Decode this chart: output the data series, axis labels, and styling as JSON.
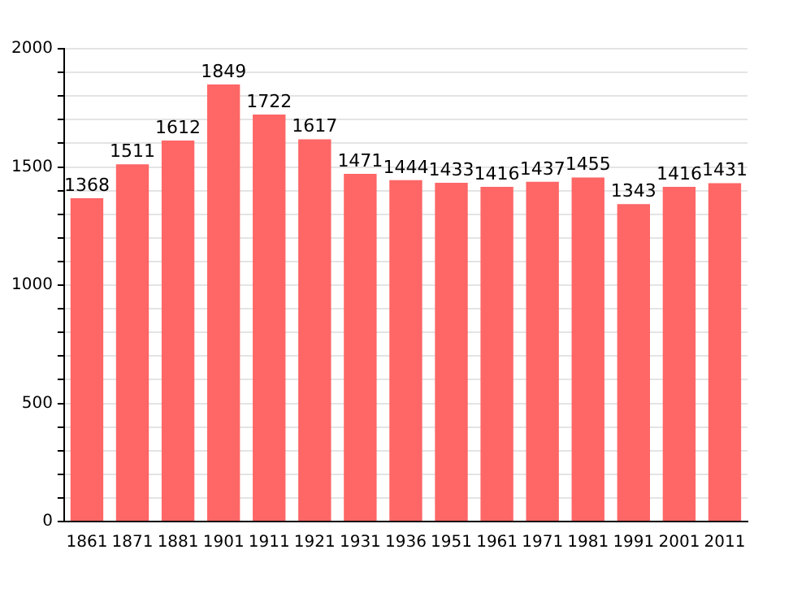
{
  "chart_data": {
    "type": "bar",
    "categories": [
      "1861",
      "1871",
      "1881",
      "1901",
      "1911",
      "1921",
      "1931",
      "1936",
      "1951",
      "1961",
      "1971",
      "1981",
      "1991",
      "2001",
      "2011"
    ],
    "values": [
      1368,
      1511,
      1612,
      1849,
      1722,
      1617,
      1471,
      1444,
      1433,
      1416,
      1437,
      1455,
      1343,
      1416,
      1431
    ],
    "color": "#ff6666",
    "ylim": [
      0,
      2000
    ],
    "yticks": [
      0,
      {
        "value": 100,
        "label": null
      },
      {
        "value": 200,
        "label": null
      },
      {
        "value": 300,
        "label": null
      },
      {
        "value": 400,
        "label": null
      },
      500,
      {
        "value": 600,
        "label": null
      },
      {
        "value": 700,
        "label": null
      },
      {
        "value": 800,
        "label": null
      },
      {
        "value": 900,
        "label": null
      },
      1000,
      {
        "value": 1100,
        "label": null
      },
      {
        "value": 1200,
        "label": null
      },
      {
        "value": 1300,
        "label": null
      },
      {
        "value": 1400,
        "label": null
      },
      1500,
      {
        "value": 1600,
        "label": null
      },
      {
        "value": 1700,
        "label": null
      },
      {
        "value": 1800,
        "label": null
      },
      {
        "value": 1900,
        "label": null
      },
      2000
    ],
    "grid": "y",
    "data_labels": true,
    "legend": false
  }
}
